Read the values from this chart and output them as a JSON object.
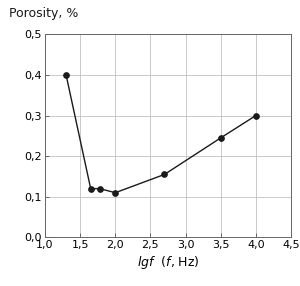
{
  "x": [
    1.3,
    1.65,
    1.78,
    2.0,
    2.7,
    3.5,
    4.0
  ],
  "y": [
    0.4,
    0.12,
    0.12,
    0.11,
    0.155,
    0.245,
    0.3
  ],
  "line_color": "#1a1a1a",
  "marker": "o",
  "marker_size": 4,
  "marker_facecolor": "#1a1a1a",
  "xlim": [
    1.0,
    4.5
  ],
  "ylim": [
    0.0,
    0.5
  ],
  "xticks": [
    1.0,
    1.5,
    2.0,
    2.5,
    3.0,
    3.5,
    4.0,
    4.5
  ],
  "yticks": [
    0.0,
    0.1,
    0.2,
    0.3,
    0.4,
    0.5
  ],
  "ylabel": "Porosity, %",
  "background_color": "#ffffff",
  "grid_color": "#c0c0c0",
  "tick_label_fontsize": 8,
  "axis_label_fontsize": 9
}
